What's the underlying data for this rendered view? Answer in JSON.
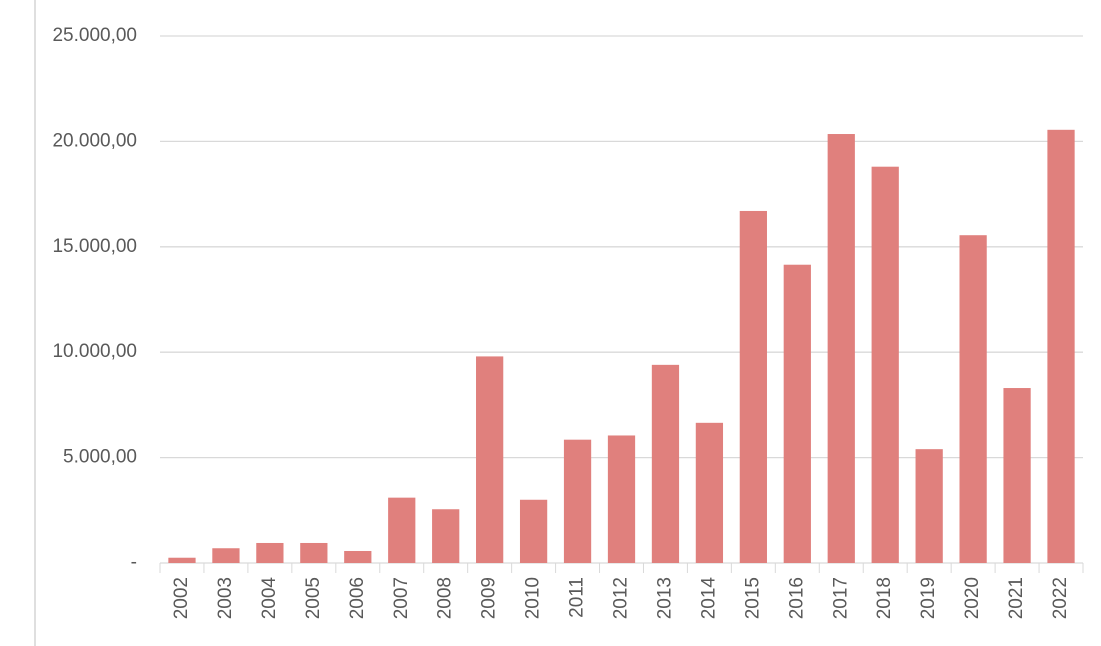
{
  "chart_data": {
    "type": "bar",
    "categories": [
      "2002",
      "2003",
      "2004",
      "2005",
      "2006",
      "2007",
      "2008",
      "2009",
      "2010",
      "2011",
      "2012",
      "2013",
      "2014",
      "2015",
      "2016",
      "2017",
      "2018",
      "2019",
      "2020",
      "2021",
      "2022"
    ],
    "values": [
      250,
      700,
      950,
      950,
      570,
      3100,
      2550,
      9800,
      3000,
      5850,
      6050,
      9400,
      6650,
      16700,
      14150,
      20350,
      18800,
      5400,
      15550,
      8300,
      20550
    ],
    "color": "#e0807d",
    "ylim": [
      0,
      25000
    ],
    "yticks": [
      {
        "value": 0,
        "label": "-"
      },
      {
        "value": 5000,
        "label": "5.000,00"
      },
      {
        "value": 10000,
        "label": "10.000,00"
      },
      {
        "value": 15000,
        "label": "15.000,00"
      },
      {
        "value": 20000,
        "label": "20.000,00"
      },
      {
        "value": 25000,
        "label": "25.000,00"
      }
    ],
    "grid": true
  }
}
